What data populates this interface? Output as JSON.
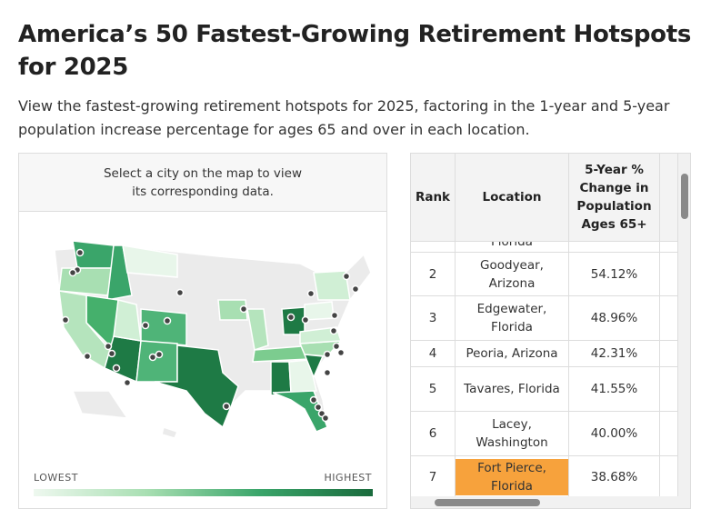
{
  "header": {
    "title": "America’s 50 Fastest-Growing Retirement Hotspots for 2025",
    "subtitle": "View the fastest-growing retirement hotspots for 2025, factoring in the 1-year and 5-year population increase percentage for ages 65 and over in each location."
  },
  "map": {
    "instruction": "Select a city on the map to view its corresponding data.",
    "legend_low": "LOWEST",
    "legend_high": "HIGHEST"
  },
  "table": {
    "columns": [
      "Rank",
      "Location",
      "5-Year % Change in Population Ages 65+"
    ],
    "rows": [
      {
        "location": "Florida"
      },
      {
        "rank": "2",
        "location": "Goodyear, Arizona",
        "change": "54.12%"
      },
      {
        "rank": "3",
        "location": "Edgewater, Florida",
        "change": "48.96%"
      },
      {
        "rank": "4",
        "location": "Peoria, Arizona",
        "change": "42.31%"
      },
      {
        "rank": "5",
        "location": "Tavares, Florida",
        "change": "41.55%"
      },
      {
        "rank": "6",
        "location": "Lacey, Washington",
        "change": "40.00%"
      },
      {
        "rank": "7",
        "location": "Fort Pierce, Florida",
        "change": "38.68%"
      }
    ]
  }
}
